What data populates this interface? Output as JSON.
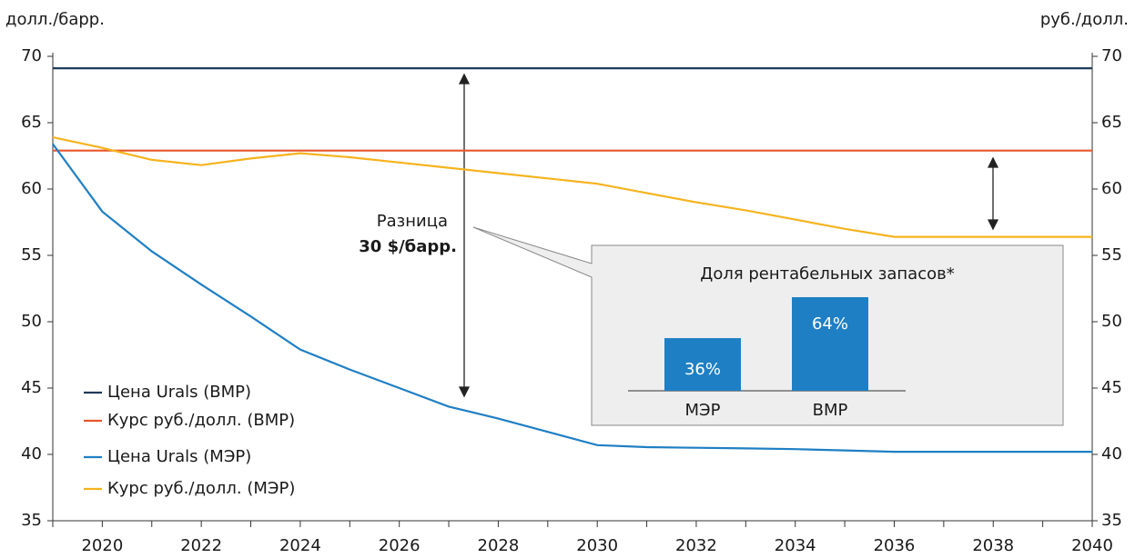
{
  "chart_data": [
    {
      "type": "line",
      "y_label": "долл./барр.",
      "y2_label": "руб./долл.",
      "annotations": [
        "Разница",
        "30 $/барр."
      ],
      "x": [
        2019,
        2020,
        2021,
        2022,
        2023,
        2024,
        2025,
        2026,
        2027,
        2028,
        2029,
        2030,
        2031,
        2032,
        2033,
        2034,
        2035,
        2036,
        2037,
        2038,
        2039,
        2040
      ],
      "xlim": [
        2019,
        2040
      ],
      "xticks": [
        2020,
        2022,
        2024,
        2026,
        2028,
        2030,
        2032,
        2034,
        2036,
        2038,
        2040
      ],
      "ylim": [
        35,
        70
      ],
      "yticks": [
        35,
        40,
        45,
        50,
        55,
        60,
        65,
        70
      ],
      "y2lim": [
        35,
        70
      ],
      "y2ticks": [
        35,
        40,
        45,
        50,
        55,
        60,
        65,
        70
      ],
      "series": [
        {
          "name": "Цена Urals  (ВМР)",
          "color": "#1f3a5a",
          "values": [
            69.1,
            69.1,
            69.1,
            69.1,
            69.1,
            69.1,
            69.1,
            69.1,
            69.1,
            69.1,
            69.1,
            69.1,
            69.1,
            69.1,
            69.1,
            69.1,
            69.1,
            69.1,
            69.1,
            69.1,
            69.1,
            69.1
          ]
        },
        {
          "name": "Курс руб./долл. (ВМР)",
          "color": "#e8562a",
          "axis": "y2",
          "values": [
            62.9,
            62.9,
            62.9,
            62.9,
            62.9,
            62.9,
            62.9,
            62.9,
            62.9,
            62.9,
            62.9,
            62.9,
            62.9,
            62.9,
            62.9,
            62.9,
            62.9,
            62.9,
            62.9,
            62.9,
            62.9,
            62.9
          ]
        },
        {
          "name": "Цена Urals  (МЭР)",
          "color": "#1f7fc4",
          "values": [
            63.4,
            58.3,
            55.3,
            52.8,
            50.4,
            47.9,
            46.4,
            45.0,
            43.6,
            42.7,
            41.7,
            40.7,
            40.55,
            40.5,
            40.45,
            40.4,
            40.3,
            40.2,
            40.2,
            40.2,
            40.2,
            40.2
          ]
        },
        {
          "name": "Курс руб./долл. (МЭР)",
          "color": "#f5b31e",
          "axis": "y2",
          "values": [
            63.9,
            63.1,
            62.2,
            61.8,
            62.3,
            62.7,
            62.4,
            62.0,
            61.6,
            61.2,
            60.8,
            60.4,
            59.7,
            59.0,
            58.4,
            57.7,
            57.0,
            56.4,
            56.4,
            56.4,
            56.4,
            56.4
          ]
        }
      ]
    },
    {
      "type": "bar",
      "title": "Доля рентабельных запасов*",
      "categories": [
        "МЭР",
        "ВМР"
      ],
      "values": [
        36,
        64
      ],
      "value_labels": [
        "36%",
        "64%"
      ],
      "color": "#1f7fc4"
    }
  ]
}
